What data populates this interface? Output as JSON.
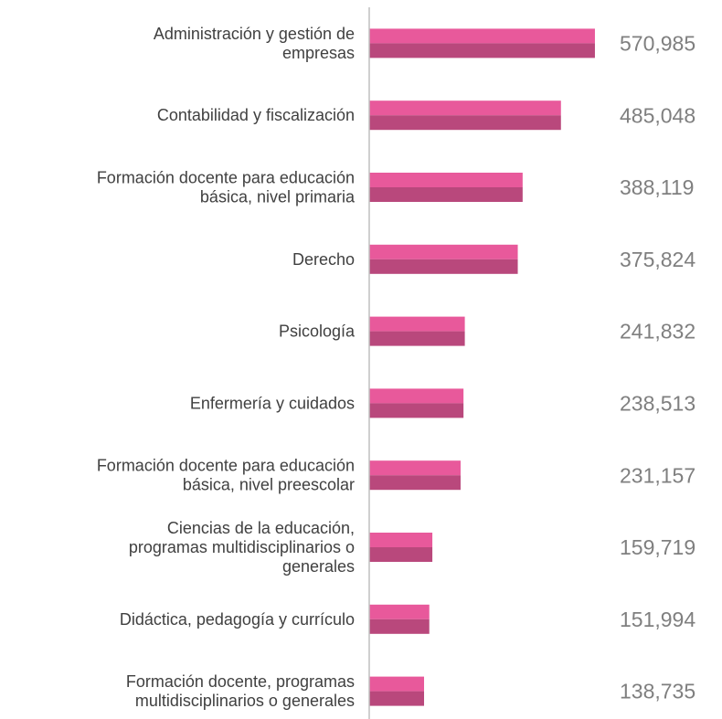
{
  "chart_data": {
    "type": "barh",
    "categories": [
      "Administración y gestión de\nempresas",
      "Contabilidad y fiscalización",
      "Formación docente para educación\nbásica, nivel primaria",
      "Derecho",
      "Psicología",
      "Enfermería y cuidados",
      "Formación docente para educación\nbásica, nivel preescolar",
      "Ciencias de la educación,\nprogramas multidisciplinarios o\ngenerales",
      "Didáctica, pedagogía y currículo",
      "Formación docente, programas\nmultidisciplinarios o generales"
    ],
    "values": [
      570985,
      485048,
      388119,
      375824,
      241832,
      238513,
      231157,
      159719,
      151994,
      138735
    ],
    "value_labels": [
      "570,985",
      "485,048",
      "388,119",
      "375,824",
      "241,832",
      "238,513",
      "231,157",
      "159,719",
      "151,994",
      "138,735"
    ],
    "color": "#e8599b",
    "shade_color": "#b9487c",
    "xlim": [
      0,
      800000
    ]
  }
}
